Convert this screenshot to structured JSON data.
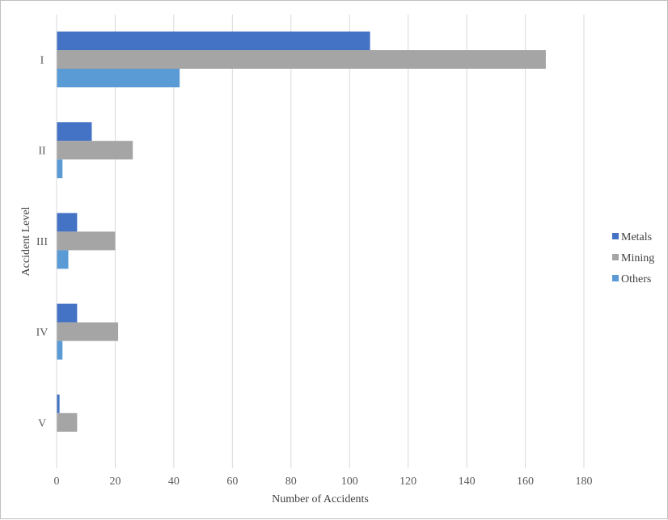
{
  "chart_data": {
    "type": "bar",
    "orientation": "horizontal",
    "categories": [
      "I",
      "II",
      "III",
      "IV",
      "V"
    ],
    "series": [
      {
        "name": "Metals",
        "color": "#4472c4",
        "values": [
          107,
          12,
          7,
          7,
          1
        ]
      },
      {
        "name": "Mining",
        "color": "#a5a5a5",
        "values": [
          167,
          26,
          20,
          21,
          7
        ]
      },
      {
        "name": "Others",
        "color": "#5b9bd5",
        "values": [
          42,
          2,
          4,
          2,
          0
        ]
      }
    ],
    "xlabel": "Number of Accidents",
    "ylabel": "Accident Level",
    "xlim": [
      0,
      180
    ],
    "xticks": [
      "0",
      "20",
      "40",
      "60",
      "80",
      "100",
      "120",
      "140",
      "160",
      "180"
    ],
    "grid": true,
    "legend_position": "right"
  }
}
